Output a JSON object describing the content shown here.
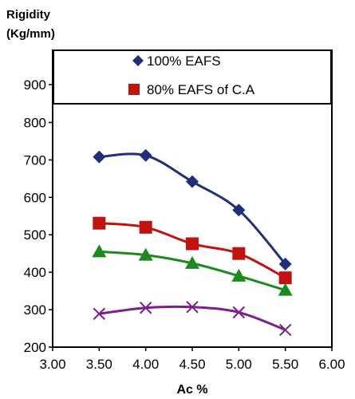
{
  "chart_data": {
    "type": "line",
    "ylabel_line1": "Rigidity",
    "ylabel_line2": "(Kg/mm)",
    "xlabel": "Ac %",
    "xlim": [
      3.0,
      6.0
    ],
    "ylim": [
      200,
      900
    ],
    "x_ticks": [
      "3.00",
      "3.50",
      "4.00",
      "4.50",
      "5.00",
      "5.50",
      "6.00"
    ],
    "y_ticks": [
      "200",
      "300",
      "400",
      "500",
      "600",
      "700",
      "800",
      "900"
    ],
    "x": [
      3.5,
      4.0,
      4.5,
      5.0,
      5.5
    ],
    "legend_placement": "top (inside plot)",
    "series": [
      {
        "name": "100% EAFS",
        "marker": "diamond",
        "color": "#1f2f7a",
        "values": [
          708,
          712,
          642,
          566,
          422
        ]
      },
      {
        "name": "80% EAFS of C.A",
        "marker": "square",
        "color": "#c0120f",
        "values": [
          531,
          520,
          476,
          450,
          385
        ]
      },
      {
        "name": "",
        "marker": "triangle",
        "color": "#1c8a1c",
        "values": [
          455,
          446,
          424,
          390,
          352
        ]
      },
      {
        "name": "",
        "marker": "x",
        "color": "#7a1f8c",
        "values": [
          289,
          305,
          307,
          293,
          246
        ]
      }
    ]
  }
}
